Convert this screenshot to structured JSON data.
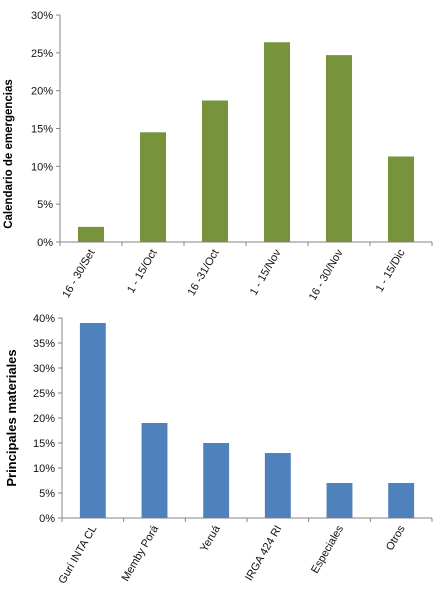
{
  "chart_data": [
    {
      "type": "bar",
      "categories": [
        "16 - 30/Set",
        "1 - 15/Oct",
        "16 -31/Oct",
        "1 - 15/Nov",
        "16 - 30/Nov",
        "1 - 15/Dic"
      ],
      "values": [
        2,
        14.5,
        18.7,
        26.4,
        24.7,
        11.3
      ],
      "ylabel": "Calendario de emergencias",
      "ylim": [
        0,
        30
      ],
      "yticks": [
        0,
        5,
        10,
        15,
        20,
        25,
        30
      ],
      "ytick_format": "percent",
      "bar_color": "#77933C",
      "grid": false
    },
    {
      "type": "bar",
      "categories": [
        "Gurí INTA CL",
        "Memby Porá",
        "Yeruá",
        "IRGA 424 RI",
        "Especiales",
        "Otros"
      ],
      "values": [
        39,
        19,
        15,
        13,
        7,
        7
      ],
      "ylabel": "Principales materiales",
      "ylim": [
        0,
        40
      ],
      "yticks": [
        0,
        5,
        10,
        15,
        20,
        25,
        30,
        35,
        40
      ],
      "ytick_format": "percent",
      "bar_color": "#4F81BD",
      "grid": false
    }
  ]
}
